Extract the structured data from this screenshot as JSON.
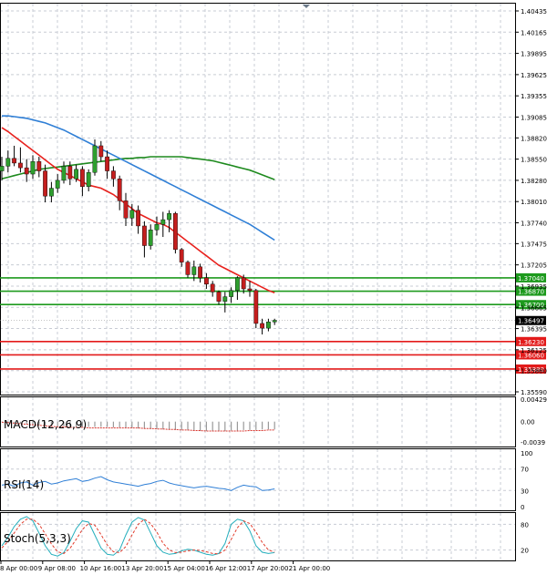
{
  "colors": {
    "background": "#ffffff",
    "grid": "#c8ccd4",
    "axis": "#000000",
    "bull_candle": "#2e9e2e",
    "bear_candle": "#c41e1e",
    "ma_fast": "#e8211d",
    "ma_mid": "#2f7fd6",
    "ma_slow": "#1e8a1e",
    "resistance": "#1d9a1d",
    "support": "#e31b1b",
    "macd_signal": "#d9362f",
    "rsi": "#2f7fd6",
    "stoch_main": "#22aebc",
    "stoch_signal": "#e23c2c"
  },
  "chart_data": [
    {
      "type": "candlestick",
      "panel": "price",
      "ylim": [
        1.3559,
        1.40435
      ],
      "y_ticks": [
        "1.40435",
        "1.40165",
        "1.39895",
        "1.39625",
        "1.39355",
        "1.39085",
        "1.38820",
        "1.38550",
        "1.38280",
        "1.38010",
        "1.37740",
        "1.37475",
        "1.37205",
        "1.36935",
        "1.36665",
        "1.36395",
        "1.36125",
        "1.35860",
        "1.35590"
      ],
      "x_ticks": [
        "8 Apr 00:00",
        "9 Apr 08:00",
        "10 Apr 16:00",
        "13 Apr 20:00",
        "15 Apr 04:00",
        "16 Apr 12:00",
        "17 Apr 20:00",
        "21 Apr 00:00"
      ],
      "last_price": "1.36497",
      "levels": [
        {
          "value": 1.3704,
          "label": "1.37040",
          "kind": "resistance"
        },
        {
          "value": 1.3687,
          "label": "1.36870",
          "kind": "resistance"
        },
        {
          "value": 1.367,
          "label": "1.36700",
          "kind": "resistance"
        },
        {
          "value": 1.3623,
          "label": "1.36230",
          "kind": "support"
        },
        {
          "value": 1.3606,
          "label": "1.36060",
          "kind": "support"
        },
        {
          "value": 1.3588,
          "label": "1.35880",
          "kind": "support"
        }
      ],
      "candles": [
        {
          "o": 1.384,
          "h": 1.3858,
          "l": 1.3828,
          "c": 1.3846
        },
        {
          "o": 1.3846,
          "h": 1.3866,
          "l": 1.3838,
          "c": 1.3856
        },
        {
          "o": 1.3856,
          "h": 1.3872,
          "l": 1.3846,
          "c": 1.385
        },
        {
          "o": 1.385,
          "h": 1.387,
          "l": 1.3838,
          "c": 1.3844
        },
        {
          "o": 1.3844,
          "h": 1.3855,
          "l": 1.3826,
          "c": 1.3836
        },
        {
          "o": 1.3836,
          "h": 1.386,
          "l": 1.383,
          "c": 1.3852
        },
        {
          "o": 1.3852,
          "h": 1.3858,
          "l": 1.3832,
          "c": 1.384
        },
        {
          "o": 1.384,
          "h": 1.3848,
          "l": 1.38,
          "c": 1.3808
        },
        {
          "o": 1.3808,
          "h": 1.3826,
          "l": 1.38,
          "c": 1.3818
        },
        {
          "o": 1.3818,
          "h": 1.3836,
          "l": 1.3812,
          "c": 1.3828
        },
        {
          "o": 1.3828,
          "h": 1.3852,
          "l": 1.3824,
          "c": 1.3846
        },
        {
          "o": 1.3846,
          "h": 1.3852,
          "l": 1.3822,
          "c": 1.383
        },
        {
          "o": 1.383,
          "h": 1.3848,
          "l": 1.3826,
          "c": 1.3842
        },
        {
          "o": 1.3842,
          "h": 1.3846,
          "l": 1.3808,
          "c": 1.382
        },
        {
          "o": 1.382,
          "h": 1.3842,
          "l": 1.3814,
          "c": 1.3838
        },
        {
          "o": 1.3838,
          "h": 1.388,
          "l": 1.3834,
          "c": 1.3872
        },
        {
          "o": 1.3872,
          "h": 1.3878,
          "l": 1.3852,
          "c": 1.3858
        },
        {
          "o": 1.3858,
          "h": 1.3866,
          "l": 1.383,
          "c": 1.384
        },
        {
          "o": 1.384,
          "h": 1.3846,
          "l": 1.382,
          "c": 1.383
        },
        {
          "o": 1.383,
          "h": 1.3834,
          "l": 1.379,
          "c": 1.3802
        },
        {
          "o": 1.3802,
          "h": 1.3812,
          "l": 1.377,
          "c": 1.378
        },
        {
          "o": 1.378,
          "h": 1.3798,
          "l": 1.377,
          "c": 1.379
        },
        {
          "o": 1.379,
          "h": 1.3796,
          "l": 1.376,
          "c": 1.377
        },
        {
          "o": 1.377,
          "h": 1.3776,
          "l": 1.373,
          "c": 1.3745
        },
        {
          "o": 1.3745,
          "h": 1.3772,
          "l": 1.374,
          "c": 1.3765
        },
        {
          "o": 1.3765,
          "h": 1.3782,
          "l": 1.3758,
          "c": 1.3772
        },
        {
          "o": 1.3772,
          "h": 1.3788,
          "l": 1.3756,
          "c": 1.3778
        },
        {
          "o": 1.3778,
          "h": 1.379,
          "l": 1.3762,
          "c": 1.3786
        },
        {
          "o": 1.3786,
          "h": 1.3788,
          "l": 1.3735,
          "c": 1.374
        },
        {
          "o": 1.374,
          "h": 1.3742,
          "l": 1.3718,
          "c": 1.3724
        },
        {
          "o": 1.3724,
          "h": 1.3726,
          "l": 1.3704,
          "c": 1.3708
        },
        {
          "o": 1.3708,
          "h": 1.3726,
          "l": 1.37,
          "c": 1.3718
        },
        {
          "o": 1.3718,
          "h": 1.3722,
          "l": 1.3698,
          "c": 1.3704
        },
        {
          "o": 1.3704,
          "h": 1.371,
          "l": 1.369,
          "c": 1.3696
        },
        {
          "o": 1.3696,
          "h": 1.37,
          "l": 1.368,
          "c": 1.3686
        },
        {
          "o": 1.3686,
          "h": 1.3688,
          "l": 1.367,
          "c": 1.3674
        },
        {
          "o": 1.3674,
          "h": 1.3686,
          "l": 1.366,
          "c": 1.368
        },
        {
          "o": 1.368,
          "h": 1.3692,
          "l": 1.3672,
          "c": 1.3688
        },
        {
          "o": 1.3688,
          "h": 1.3706,
          "l": 1.3676,
          "c": 1.3704
        },
        {
          "o": 1.3704,
          "h": 1.3708,
          "l": 1.3684,
          "c": 1.369
        },
        {
          "o": 1.369,
          "h": 1.37,
          "l": 1.368,
          "c": 1.3688
        },
        {
          "o": 1.3688,
          "h": 1.369,
          "l": 1.364,
          "c": 1.3646
        },
        {
          "o": 1.3646,
          "h": 1.3652,
          "l": 1.3632,
          "c": 1.364
        },
        {
          "o": 1.364,
          "h": 1.3652,
          "l": 1.3636,
          "c": 1.3648
        },
        {
          "o": 1.3648,
          "h": 1.3652,
          "l": 1.3644,
          "c": 1.365
        }
      ],
      "ma_fast": [
        1.3895,
        1.389,
        1.3884,
        1.3878,
        1.3872,
        1.3866,
        1.386,
        1.3854,
        1.3848,
        1.3842,
        1.3838,
        1.3834,
        1.383,
        1.3826,
        1.3822,
        1.382,
        1.3818,
        1.3814,
        1.381,
        1.3804,
        1.3798,
        1.3792,
        1.3786,
        1.3782,
        1.3778,
        1.3774,
        1.3772,
        1.3768,
        1.3762,
        1.3756,
        1.375,
        1.3744,
        1.3738,
        1.3732,
        1.3726,
        1.372,
        1.3716,
        1.3712,
        1.3708,
        1.3704,
        1.37,
        1.3696,
        1.3692,
        1.3688,
        1.3685
      ],
      "ma_mid": [
        1.391,
        1.391,
        1.3909,
        1.3908,
        1.3907,
        1.3905,
        1.3903,
        1.3901,
        1.3898,
        1.3895,
        1.3892,
        1.3888,
        1.3884,
        1.388,
        1.3876,
        1.3872,
        1.3868,
        1.3864,
        1.386,
        1.3856,
        1.3852,
        1.3848,
        1.3844,
        1.384,
        1.3836,
        1.3832,
        1.3828,
        1.3824,
        1.382,
        1.3816,
        1.3812,
        1.3808,
        1.3804,
        1.38,
        1.3796,
        1.3792,
        1.3788,
        1.3784,
        1.378,
        1.3776,
        1.3772,
        1.3767,
        1.3762,
        1.3757,
        1.3752
      ],
      "ma_slow": [
        1.383,
        1.3832,
        1.3834,
        1.3836,
        1.3838,
        1.384,
        1.3842,
        1.3843,
        1.3844,
        1.3845,
        1.3846,
        1.3847,
        1.3848,
        1.3849,
        1.385,
        1.3851,
        1.3852,
        1.3853,
        1.3854,
        1.3855,
        1.3856,
        1.3856,
        1.3857,
        1.3857,
        1.3858,
        1.3858,
        1.3858,
        1.3858,
        1.3858,
        1.3858,
        1.3857,
        1.3856,
        1.3855,
        1.3854,
        1.3853,
        1.3851,
        1.3849,
        1.3847,
        1.3845,
        1.3843,
        1.3841,
        1.3838,
        1.3835,
        1.3832,
        1.3829
      ]
    },
    {
      "type": "bar",
      "panel": "macd",
      "title": "MACD(12,26,9)",
      "y_ticks": [
        "0.004293",
        "0.00",
        "-0.0039"
      ],
      "ylim": [
        -0.0044,
        0.004293
      ],
      "values": [
        -0.0001,
        -0.0002,
        -0.0003,
        -0.0004,
        -0.0005,
        -0.0006,
        -0.0007,
        -0.0008,
        -0.0008,
        -0.0009,
        -0.0009,
        -0.0009,
        -0.001,
        -0.001,
        -0.001,
        -0.001,
        -0.001,
        -0.001,
        -0.0011,
        -0.0011,
        -0.0012,
        -0.0012,
        -0.0013,
        -0.0013,
        -0.0014,
        -0.0014,
        -0.0015,
        -0.0015,
        -0.0016,
        -0.0016,
        -0.0017,
        -0.0017,
        -0.0018,
        -0.0018,
        -0.0018,
        -0.0018,
        -0.0018,
        -0.0017,
        -0.0017,
        -0.0016,
        -0.0016,
        -0.0016,
        -0.0015,
        -0.0015,
        -0.0015
      ],
      "signal": [
        -0.0001,
        -0.0002,
        -0.0003,
        -0.0004,
        -0.0005,
        -0.0006,
        -0.0007,
        -0.0008,
        -0.0009,
        -0.001,
        -0.001,
        -0.0011,
        -0.0011,
        -0.0011,
        -0.0012,
        -0.0012,
        -0.0012,
        -0.0012,
        -0.0012,
        -0.0012,
        -0.0012,
        -0.0012,
        -0.0012,
        -0.0013,
        -0.0013,
        -0.0014,
        -0.0014,
        -0.0015,
        -0.0015,
        -0.0016,
        -0.0016,
        -0.0017,
        -0.0017,
        -0.0018,
        -0.0018,
        -0.0018,
        -0.0018,
        -0.0018,
        -0.0018,
        -0.0018,
        -0.0017,
        -0.0017,
        -0.0017,
        -0.0016,
        -0.0016
      ]
    },
    {
      "type": "line",
      "panel": "rsi",
      "title": "RSI(14)",
      "y_ticks": [
        "100",
        "70",
        "30",
        "0"
      ],
      "ylim": [
        0,
        100
      ],
      "values": [
        40,
        42,
        38,
        44,
        46,
        40,
        45,
        47,
        42,
        44,
        48,
        50,
        52,
        47,
        49,
        53,
        56,
        50,
        46,
        44,
        42,
        40,
        38,
        41,
        43,
        47,
        49,
        44,
        41,
        39,
        37,
        35,
        37,
        38,
        36,
        34,
        33,
        30,
        36,
        40,
        38,
        37,
        30,
        31,
        33
      ]
    },
    {
      "type": "line",
      "panel": "stoch",
      "title": "Stoch(5,3,3)",
      "y_ticks": [
        "80",
        "20"
      ],
      "ylim": [
        0,
        100
      ],
      "values": [
        30,
        50,
        75,
        92,
        98,
        88,
        60,
        30,
        10,
        6,
        14,
        40,
        70,
        88,
        85,
        55,
        25,
        10,
        8,
        20,
        55,
        85,
        96,
        90,
        60,
        30,
        15,
        10,
        12,
        18,
        22,
        20,
        15,
        10,
        8,
        12,
        35,
        80,
        92,
        88,
        65,
        30,
        15,
        12,
        14
      ],
      "signal": [
        25,
        40,
        60,
        80,
        92,
        92,
        80,
        58,
        34,
        16,
        12,
        24,
        45,
        68,
        82,
        78,
        56,
        32,
        16,
        14,
        28,
        55,
        80,
        92,
        82,
        62,
        36,
        20,
        14,
        15,
        18,
        20,
        19,
        16,
        12,
        11,
        20,
        45,
        72,
        88,
        82,
        62,
        38,
        20,
        15
      ]
    }
  ]
}
